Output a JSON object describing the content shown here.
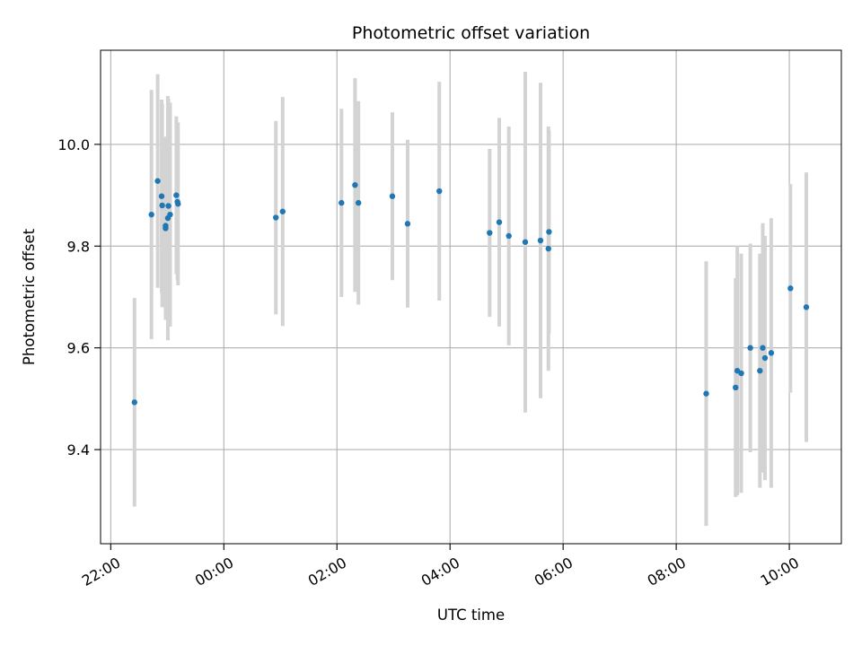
{
  "chart_data": {
    "type": "scatter",
    "title": "Photometric offset variation",
    "xlabel": "UTC time",
    "ylabel": "Photometric offset",
    "x_unit": "hours",
    "x_tick_values": [
      -2,
      0,
      2,
      4,
      6,
      8,
      10
    ],
    "x_tick_labels": [
      "22:00",
      "00:00",
      "02:00",
      "04:00",
      "06:00",
      "08:00",
      "10:00"
    ],
    "y_tick_values": [
      9.4,
      9.6,
      9.8,
      10.0
    ],
    "y_tick_labels": [
      "9.4",
      "9.6",
      "9.8",
      "10.0"
    ],
    "xlim": [
      -2.18,
      10.92
    ],
    "ylim": [
      9.215,
      10.185
    ],
    "grid": true,
    "colors": {
      "points": "#1f77b4",
      "errorbars": "#d3d3d3",
      "grid": "#b0b0b0"
    },
    "points": [
      {
        "x": -1.58,
        "y": 9.493,
        "err": 0.205
      },
      {
        "x": -1.28,
        "y": 9.862,
        "err": 0.245
      },
      {
        "x": -1.17,
        "y": 9.928,
        "err": 0.21
      },
      {
        "x": -1.1,
        "y": 9.898,
        "err": 0.19
      },
      {
        "x": -1.09,
        "y": 9.88,
        "err": 0.2
      },
      {
        "x": -1.03,
        "y": 9.84,
        "err": 0.17
      },
      {
        "x": -1.03,
        "y": 9.835,
        "err": 0.18
      },
      {
        "x": -0.99,
        "y": 9.855,
        "err": 0.24
      },
      {
        "x": -0.98,
        "y": 9.879,
        "err": 0.21
      },
      {
        "x": -0.95,
        "y": 9.862,
        "err": 0.22
      },
      {
        "x": -0.84,
        "y": 9.9,
        "err": 0.155
      },
      {
        "x": -0.82,
        "y": 9.887,
        "err": 0.155
      },
      {
        "x": -0.81,
        "y": 9.883,
        "err": 0.16
      },
      {
        "x": 0.92,
        "y": 9.856,
        "err": 0.19
      },
      {
        "x": 1.04,
        "y": 9.868,
        "err": 0.225
      },
      {
        "x": 2.08,
        "y": 9.885,
        "err": 0.185
      },
      {
        "x": 2.32,
        "y": 9.92,
        "err": 0.21
      },
      {
        "x": 2.38,
        "y": 9.885,
        "err": 0.2
      },
      {
        "x": 2.98,
        "y": 9.898,
        "err": 0.165
      },
      {
        "x": 3.25,
        "y": 9.844,
        "err": 0.165
      },
      {
        "x": 3.81,
        "y": 9.908,
        "err": 0.215
      },
      {
        "x": 4.7,
        "y": 9.826,
        "err": 0.165
      },
      {
        "x": 4.87,
        "y": 9.847,
        "err": 0.205
      },
      {
        "x": 5.04,
        "y": 9.82,
        "err": 0.215
      },
      {
        "x": 5.33,
        "y": 9.808,
        "err": 0.335
      },
      {
        "x": 5.6,
        "y": 9.811,
        "err": 0.31
      },
      {
        "x": 5.74,
        "y": 9.795,
        "err": 0.24
      },
      {
        "x": 5.75,
        "y": 9.828,
        "err": 0.2
      },
      {
        "x": 8.53,
        "y": 9.51,
        "err": 0.26
      },
      {
        "x": 9.05,
        "y": 9.522,
        "err": 0.215
      },
      {
        "x": 9.08,
        "y": 9.555,
        "err": 0.245
      },
      {
        "x": 9.15,
        "y": 9.55,
        "err": 0.235
      },
      {
        "x": 9.31,
        "y": 9.6,
        "err": 0.205
      },
      {
        "x": 9.48,
        "y": 9.555,
        "err": 0.23
      },
      {
        "x": 9.53,
        "y": 9.6,
        "err": 0.245
      },
      {
        "x": 9.57,
        "y": 9.58,
        "err": 0.24
      },
      {
        "x": 9.68,
        "y": 9.59,
        "err": 0.265
      },
      {
        "x": 10.02,
        "y": 9.717,
        "err": 0.205
      },
      {
        "x": 10.3,
        "y": 9.68,
        "err": 0.265
      }
    ]
  }
}
